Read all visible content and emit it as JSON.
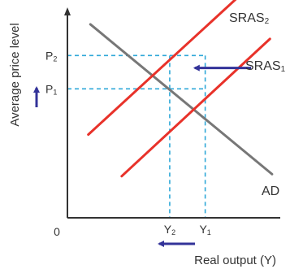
{
  "chart_data": {
    "type": "line",
    "title": "",
    "xlabel": "Real output (Y)",
    "ylabel": "Average price level",
    "origin_label": "0",
    "grid": false,
    "xlim": [
      0,
      100
    ],
    "ylim": [
      0,
      100
    ],
    "series": [
      {
        "name": "AD",
        "label_main": "AD",
        "label_sub": "",
        "color": "#777777",
        "x": [
          11,
          98
        ],
        "y": [
          93,
          21
        ]
      },
      {
        "name": "SRAS1",
        "label_main": "SRAS",
        "label_sub": "1",
        "color": "#e8322a",
        "x": [
          26,
          97
        ],
        "y": [
          20,
          86
        ]
      },
      {
        "name": "SRAS2",
        "label_main": "SRAS",
        "label_sub": "2",
        "color": "#e8322a",
        "x": [
          10,
          86
        ],
        "y": [
          40,
          110
        ]
      }
    ],
    "points": [
      {
        "name": "E2",
        "x": [
          49,
          66
        ],
        "y": 78,
        "x_label_main": "Y",
        "x_label_sub": "2",
        "y_label_main": "P",
        "y_label_sub": "2"
      },
      {
        "name": "E1",
        "x": 66,
        "y": 62,
        "x_label_main": "Y",
        "x_label_sub": "1",
        "y_label_main": "P",
        "y_label_sub": "1"
      }
    ],
    "annotations": [
      {
        "type": "arrow",
        "name": "supply-shift-arrow",
        "color": "#333399",
        "from": [
          88,
          72
        ],
        "to": [
          61,
          72
        ]
      },
      {
        "type": "arrow",
        "name": "output-fall-arrow",
        "color": "#333399",
        "from": [
          62,
          -11
        ],
        "to": [
          48,
          -11
        ]
      },
      {
        "type": "arrow",
        "name": "price-rise-arrow",
        "color": "#333399",
        "from": [
          -10.5,
          56
        ],
        "to": [
          -10.5,
          70
        ]
      }
    ],
    "guide_color": "#2fa8d8",
    "axis_color": "#333333"
  }
}
